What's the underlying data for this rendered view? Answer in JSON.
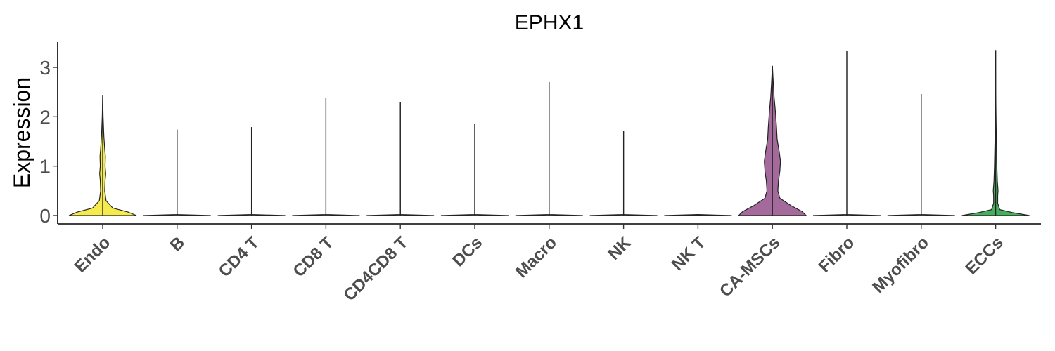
{
  "chart_data": {
    "type": "violin",
    "title": "EPHX1",
    "ylabel": "Expression",
    "xlabel": "",
    "ylim": [
      -0.15,
      3.5
    ],
    "yticks": [
      0,
      1,
      2,
      3
    ],
    "ytick_labels": [
      "0",
      "1",
      "2",
      "3"
    ],
    "grid": false,
    "legend": "none",
    "categories": [
      "Endo",
      "B",
      "CD4 T",
      "CD8 T",
      "CD4CD8 T",
      "DCs",
      "Macro",
      "NK",
      "NK T",
      "CA-MSCs",
      "Fibro",
      "Myofibro",
      "ECCs"
    ],
    "max_values": [
      2.43,
      1.74,
      1.79,
      2.38,
      2.29,
      1.85,
      2.7,
      1.72,
      0.0,
      3.03,
      3.33,
      2.46,
      3.35
    ],
    "colors": [
      "#F5EB4F",
      "#DDDDDD",
      "#DDDDDD",
      "#DDDDDD",
      "#DDDDDD",
      "#DDDDDD",
      "#DDDDDD",
      "#DDDDDD",
      "#DDDDDD",
      "#A56A9C",
      "#DDDDDD",
      "#DDDDDD",
      "#48AD5C"
    ],
    "density_profiles": [
      [
        [
          0,
          1.0
        ],
        [
          0.07,
          0.75
        ],
        [
          0.15,
          0.3
        ],
        [
          0.3,
          0.1
        ],
        [
          0.5,
          0.06
        ],
        [
          0.7,
          0.07
        ],
        [
          0.85,
          0.09
        ],
        [
          1.0,
          0.07
        ],
        [
          1.2,
          0.08
        ],
        [
          1.35,
          0.06
        ],
        [
          1.6,
          0.035
        ],
        [
          2.0,
          0.012
        ],
        [
          2.43,
          0.0
        ]
      ],
      [
        [
          0,
          1.0
        ],
        [
          0.02,
          0.0
        ],
        [
          1.74,
          0.0
        ]
      ],
      [
        [
          0,
          1.0
        ],
        [
          0.02,
          0.0
        ],
        [
          1.79,
          0.0
        ]
      ],
      [
        [
          0,
          1.0
        ],
        [
          0.02,
          0.0
        ],
        [
          2.38,
          0.0
        ]
      ],
      [
        [
          0,
          1.0
        ],
        [
          0.02,
          0.0
        ],
        [
          2.29,
          0.0
        ]
      ],
      [
        [
          0,
          1.0
        ],
        [
          0.02,
          0.0
        ],
        [
          1.85,
          0.0
        ]
      ],
      [
        [
          0,
          1.0
        ],
        [
          0.02,
          0.0
        ],
        [
          2.7,
          0.0
        ]
      ],
      [
        [
          0,
          1.0
        ],
        [
          0.02,
          0.0
        ],
        [
          1.72,
          0.0
        ]
      ],
      [
        [
          0,
          1.0
        ],
        [
          0.02,
          0.0
        ]
      ],
      [
        [
          0,
          1.0
        ],
        [
          0.08,
          0.88
        ],
        [
          0.2,
          0.55
        ],
        [
          0.35,
          0.22
        ],
        [
          0.5,
          0.16
        ],
        [
          0.7,
          0.18
        ],
        [
          0.9,
          0.22
        ],
        [
          1.1,
          0.24
        ],
        [
          1.3,
          0.2
        ],
        [
          1.55,
          0.14
        ],
        [
          1.8,
          0.12
        ],
        [
          2.1,
          0.09
        ],
        [
          2.4,
          0.05
        ],
        [
          2.7,
          0.025
        ],
        [
          3.03,
          0.0
        ]
      ],
      [
        [
          0,
          1.0
        ],
        [
          0.02,
          0.0
        ],
        [
          3.33,
          0.0
        ]
      ],
      [
        [
          0,
          1.0
        ],
        [
          0.02,
          0.0
        ],
        [
          2.46,
          0.0
        ]
      ],
      [
        [
          0,
          1.0
        ],
        [
          0.06,
          0.5
        ],
        [
          0.12,
          0.12
        ],
        [
          0.25,
          0.06
        ],
        [
          0.4,
          0.06
        ],
        [
          0.5,
          0.07
        ],
        [
          0.7,
          0.05
        ],
        [
          1.0,
          0.035
        ],
        [
          1.5,
          0.02
        ],
        [
          2.0,
          0.01
        ],
        [
          2.5,
          0.003
        ],
        [
          3.35,
          0.0
        ]
      ]
    ]
  }
}
